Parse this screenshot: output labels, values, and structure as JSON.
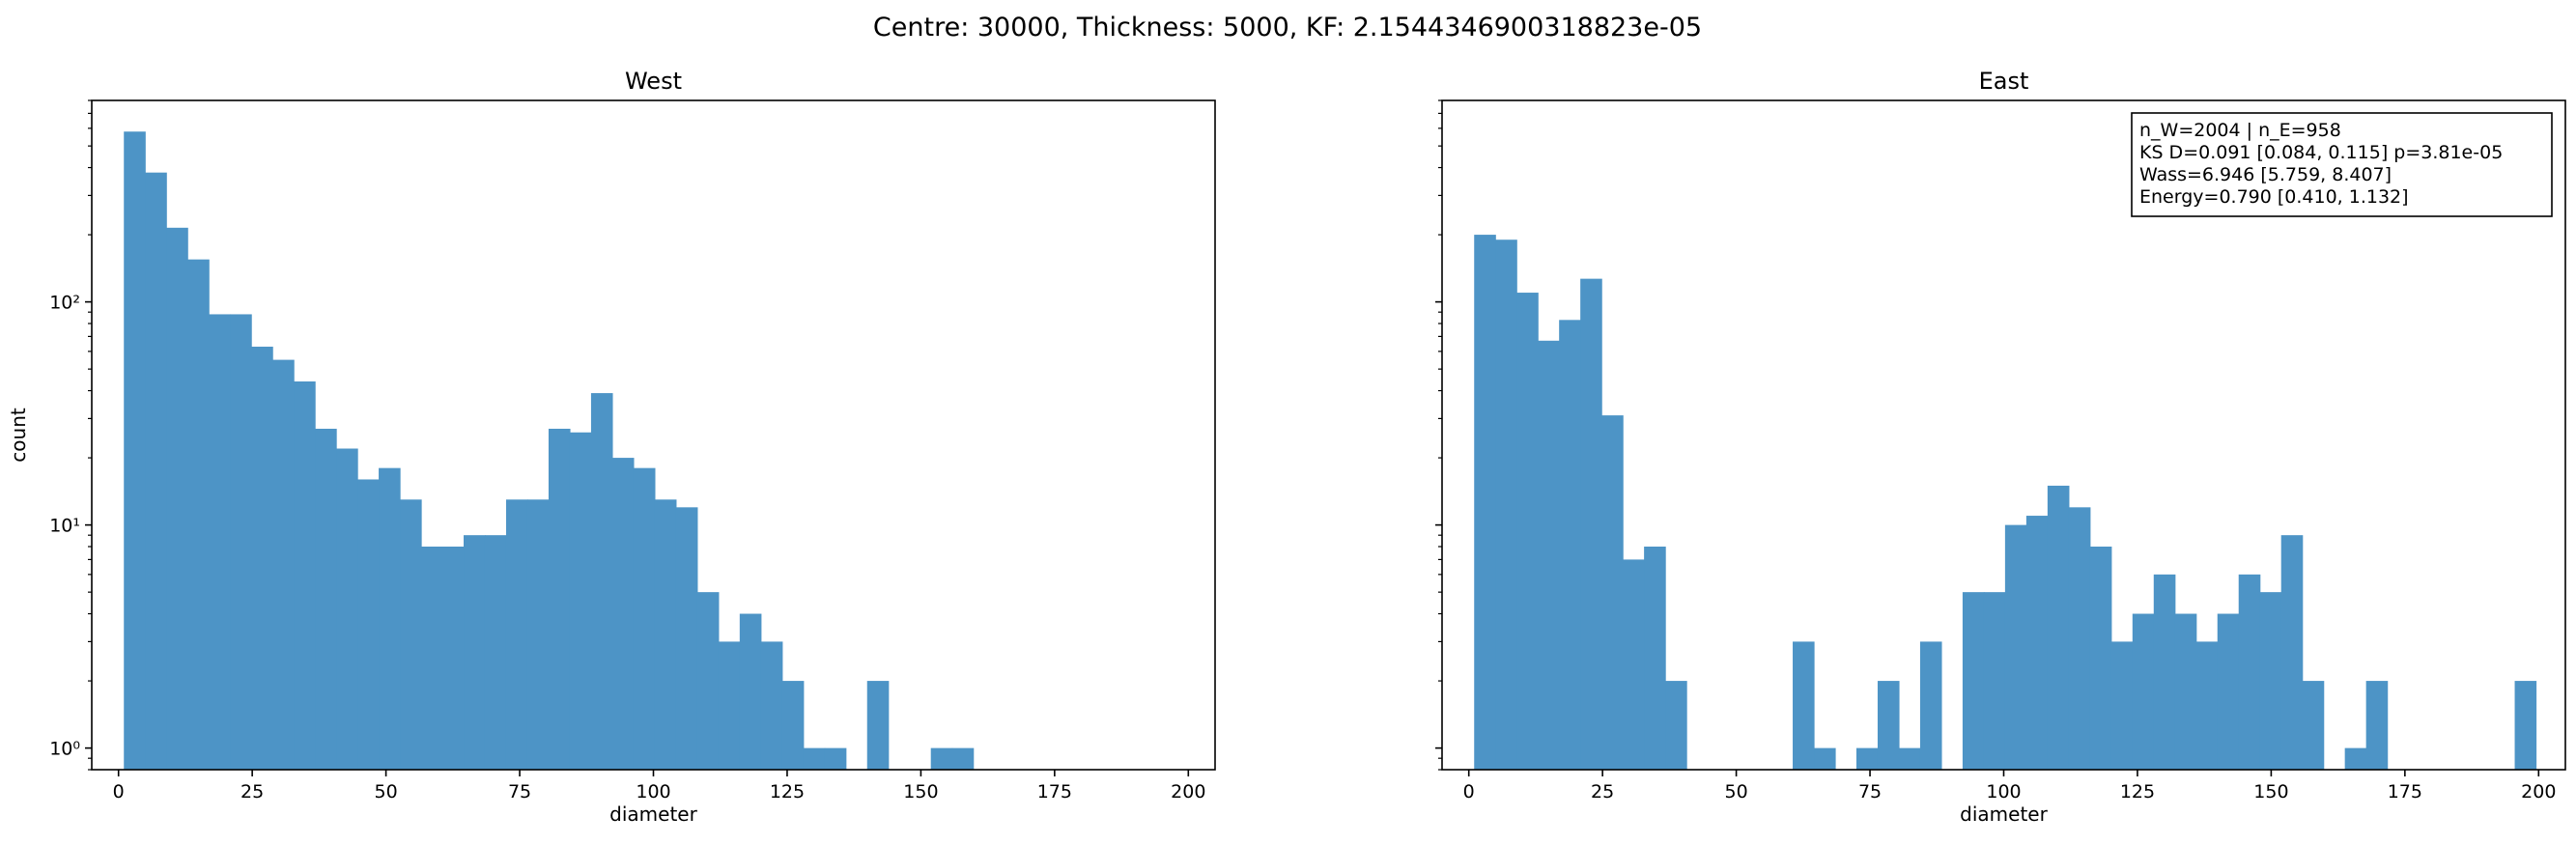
{
  "figure": {
    "suptitle": "Centre: 30000, Thickness: 5000, KF: 2.1544346900318823e-05"
  },
  "colors": {
    "bar": "#4d94c6",
    "axis": "#000000",
    "background": "#ffffff"
  },
  "chart_data": [
    {
      "type": "bar",
      "title": "West",
      "xlabel": "diameter",
      "ylabel": "count",
      "yscale": "log",
      "xlim": [
        -5,
        205
      ],
      "ylim": [
        0.8,
        800
      ],
      "xticks": [
        0,
        25,
        50,
        75,
        100,
        125,
        150,
        175,
        200
      ],
      "xtick_labels": [
        "0",
        "25",
        "50",
        "75",
        "100",
        "125",
        "150",
        "175",
        "200"
      ],
      "yticks": [
        1,
        10,
        100
      ],
      "ytick_labels": [
        "10⁰",
        "10¹",
        "10²"
      ],
      "bin_start": 1,
      "bin_width": 3.97,
      "counts": [
        580,
        380,
        215,
        155,
        88,
        88,
        63,
        55,
        44,
        27,
        22,
        16,
        18,
        13,
        8,
        8,
        9,
        9,
        13,
        13,
        27,
        26,
        39,
        20,
        18,
        13,
        12,
        5,
        3,
        4,
        3,
        2,
        1,
        1,
        0,
        2,
        0,
        0,
        1,
        1,
        0,
        0,
        0,
        0,
        0,
        0,
        0,
        0,
        0,
        0
      ],
      "grid": false
    },
    {
      "type": "bar",
      "title": "East",
      "xlabel": "diameter",
      "ylabel": "",
      "yscale": "log",
      "xlim": [
        -5,
        205
      ],
      "ylim": [
        0.8,
        800
      ],
      "xticks": [
        0,
        25,
        50,
        75,
        100,
        125,
        150,
        175,
        200
      ],
      "xtick_labels": [
        "0",
        "25",
        "50",
        "75",
        "100",
        "125",
        "150",
        "175",
        "200"
      ],
      "yticks": [
        1,
        10,
        100
      ],
      "ytick_labels": [],
      "bin_start": 1,
      "bin_width": 3.97,
      "counts": [
        200,
        190,
        110,
        67,
        83,
        127,
        31,
        7,
        8,
        2,
        0,
        0,
        0,
        0,
        0,
        3,
        1,
        0,
        1,
        2,
        1,
        3,
        0,
        5,
        5,
        10,
        11,
        15,
        12,
        8,
        3,
        4,
        6,
        4,
        3,
        4,
        6,
        5,
        9,
        2,
        0,
        1,
        2,
        0,
        0,
        0,
        0,
        0,
        0,
        2
      ],
      "grid": false,
      "annotation": {
        "placement": "top-right",
        "lines": [
          "n_W=2004 | n_E=958",
          "KS D=0.091 [0.084, 0.115]  p=3.81e-05",
          "Wass=6.946 [5.759, 8.407]",
          "Energy=0.790 [0.410, 1.132]"
        ]
      }
    }
  ]
}
